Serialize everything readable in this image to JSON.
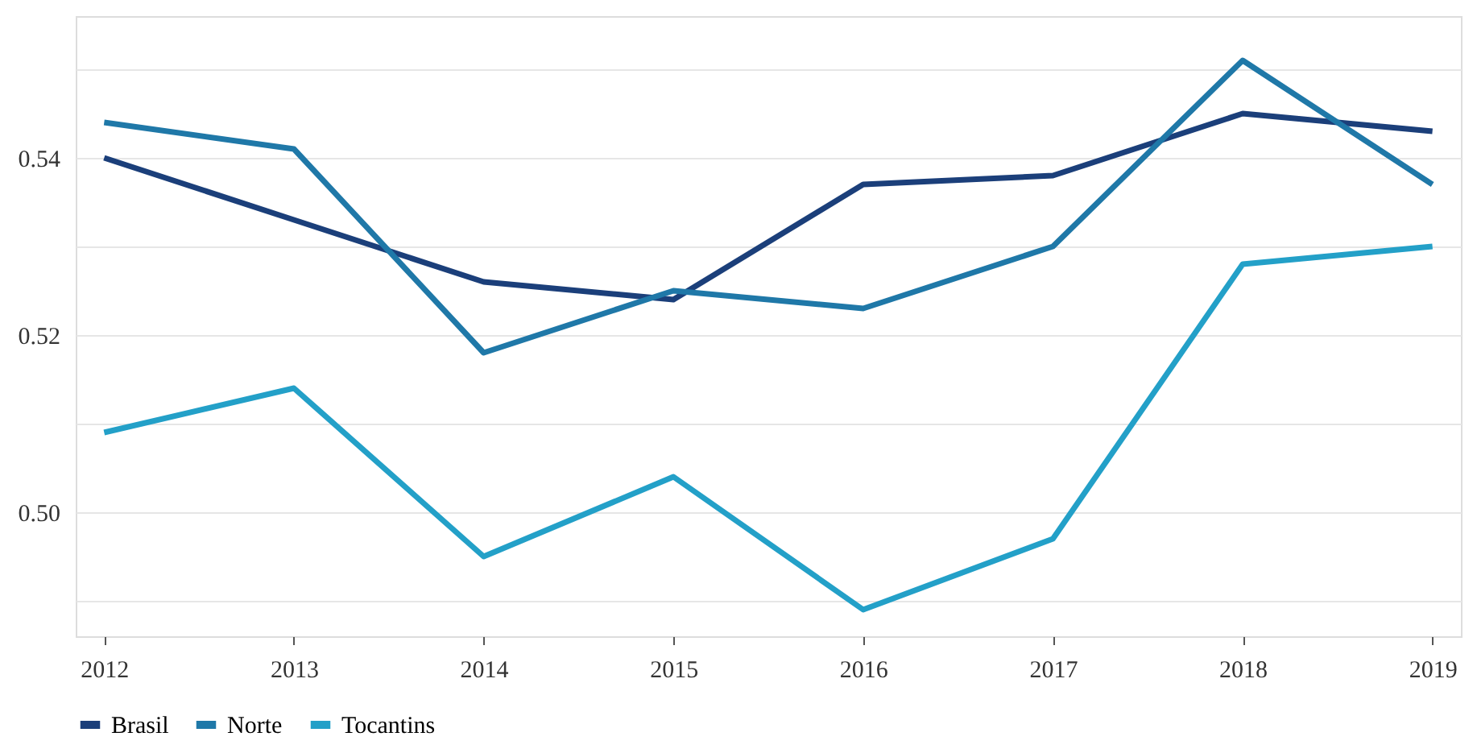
{
  "chart_data": {
    "type": "line",
    "categories": [
      "2012",
      "2013",
      "2014",
      "2015",
      "2016",
      "2017",
      "2018",
      "2019"
    ],
    "series": [
      {
        "name": "Brasil",
        "color": "#1b3f7a",
        "values": [
          0.54,
          0.533,
          0.526,
          0.524,
          0.537,
          0.538,
          0.545,
          0.543
        ]
      },
      {
        "name": "Norte",
        "color": "#1f78a8",
        "values": [
          0.544,
          0.541,
          0.518,
          0.525,
          0.523,
          0.53,
          0.551,
          0.537
        ]
      },
      {
        "name": "Tocantins",
        "color": "#23a0c8",
        "values": [
          0.509,
          0.514,
          0.495,
          0.504,
          0.489,
          0.497,
          0.528,
          0.53
        ]
      }
    ],
    "ylim": [
      0.486,
      0.556
    ],
    "yticks": [
      {
        "value": 0.49,
        "label": null
      },
      {
        "value": 0.5,
        "label": "0.50"
      },
      {
        "value": 0.51,
        "label": null
      },
      {
        "value": 0.52,
        "label": "0.52"
      },
      {
        "value": 0.53,
        "label": null
      },
      {
        "value": 0.54,
        "label": "0.54"
      },
      {
        "value": 0.55,
        "label": null
      }
    ],
    "grid": "y",
    "legend": "bottom",
    "marker": "none",
    "line_style": "solid"
  }
}
